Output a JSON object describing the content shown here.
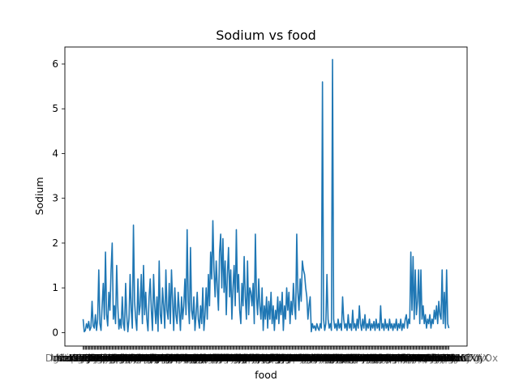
{
  "chart_data": {
    "type": "line",
    "title": "Sodium vs food",
    "xlabel": "food",
    "ylabel": "Sodium",
    "ylim": [
      -0.3,
      6.38
    ],
    "yticks": [
      0,
      1,
      2,
      3,
      4,
      5,
      6
    ],
    "line_color": "#1f77b4",
    "grid": false,
    "legend": "none",
    "series": [
      {
        "values": [
          0.3,
          0.02,
          0.05,
          0.2,
          0.1,
          0.25,
          0.05,
          0.12,
          0.7,
          0.15,
          0.1,
          0.4,
          0.05,
          0.3,
          1.4,
          0.2,
          0.05,
          0.6,
          1.1,
          0.3,
          1.8,
          0.4,
          0.15,
          0.9,
          0.5,
          1.4,
          2.0,
          0.3,
          0.6,
          0.2,
          1.5,
          0.6,
          0.08,
          0.3,
          0.1,
          0.8,
          0.2,
          0.05,
          1.1,
          0.4,
          0.02,
          0.3,
          1.3,
          0.5,
          0.1,
          2.4,
          0.7,
          0.3,
          0.05,
          1.2,
          0.4,
          0.6,
          1.3,
          0.2,
          1.5,
          0.4,
          0.9,
          0.3,
          0.04,
          0.8,
          1.2,
          0.5,
          0.05,
          1.3,
          0.6,
          0.2,
          0.8,
          0.03,
          1.6,
          0.4,
          0.2,
          1.0,
          0.6,
          0.1,
          1.4,
          0.5,
          0.3,
          1.1,
          0.2,
          1.4,
          0.7,
          0.05,
          1.0,
          0.4,
          0.2,
          0.9,
          0.5,
          0.05,
          0.8,
          0.3,
          0.6,
          1.2,
          0.4,
          2.3,
          0.7,
          0.2,
          1.9,
          0.5,
          0.3,
          0.8,
          0.05,
          0.4,
          0.9,
          0.3,
          0.1,
          0.6,
          0.2,
          1.0,
          0.05,
          0.4,
          1.0,
          0.3,
          1.3,
          0.6,
          1.8,
          1.2,
          2.5,
          1.4,
          0.8,
          1.6,
          1.0,
          0.5,
          1.8,
          2.2,
          1.0,
          2.1,
          0.9,
          1.6,
          0.4,
          1.3,
          1.9,
          0.8,
          1.4,
          0.3,
          1.0,
          1.5,
          0.6,
          2.3,
          0.9,
          1.3,
          0.5,
          0.2,
          1.1,
          0.6,
          1.7,
          0.8,
          0.3,
          1.6,
          0.4,
          1.0,
          0.9,
          0.6,
          1.1,
          0.2,
          2.2,
          0.8,
          0.4,
          1.2,
          0.6,
          0.3,
          1.0,
          0.05,
          0.6,
          0.3,
          0.8,
          0.1,
          0.7,
          0.3,
          0.9,
          0.2,
          0.6,
          0.05,
          0.5,
          0.3,
          0.8,
          0.2,
          0.7,
          0.4,
          0.9,
          0.05,
          0.6,
          0.3,
          1.0,
          0.5,
          0.9,
          0.2,
          0.7,
          0.4,
          1.1,
          0.6,
          0.3,
          2.2,
          0.9,
          0.5,
          1.2,
          0.7,
          1.6,
          1.4,
          1.3,
          1.0,
          0.8,
          0.3,
          0.6,
          0.8,
          0.02,
          0.2,
          0.1,
          0.15,
          0.05,
          0.2,
          0.1,
          0.05,
          0.2,
          0.1,
          5.6,
          0.3,
          0.05,
          0.2,
          1.3,
          0.3,
          0.1,
          0.2,
          0.05,
          6.1,
          0.3,
          0.1,
          0.2,
          0.05,
          0.3,
          0.1,
          0.2,
          0.05,
          0.8,
          0.3,
          0.1,
          0.2,
          0.05,
          0.4,
          0.1,
          0.2,
          0.05,
          0.5,
          0.1,
          0.2,
          0.05,
          0.3,
          0.1,
          0.6,
          0.2,
          0.05,
          0.3,
          0.1,
          0.4,
          0.05,
          0.2,
          0.1,
          0.3,
          0.05,
          0.2,
          0.1,
          0.25,
          0.05,
          0.3,
          0.1,
          0.2,
          0.05,
          0.6,
          0.1,
          0.2,
          0.05,
          0.3,
          0.1,
          0.2,
          0.05,
          0.3,
          0.1,
          0.2,
          0.05,
          0.2,
          0.1,
          0.3,
          0.05,
          0.2,
          0.1,
          0.3,
          0.05,
          0.2,
          0.1,
          0.3,
          0.4,
          0.1,
          0.3,
          0.2,
          1.8,
          0.5,
          1.7,
          0.3,
          1.4,
          0.4,
          0.7,
          1.4,
          0.2,
          1.4,
          0.3,
          0.6,
          0.2,
          0.4,
          0.1,
          0.3,
          0.2,
          0.4,
          0.1,
          0.3,
          0.2,
          0.5,
          0.3,
          0.6,
          0.2,
          0.7,
          0.4,
          0.3,
          1.4,
          0.2,
          0.9,
          0.1,
          1.4,
          0.2,
          0.1
        ],
        "color": "#1f77b4"
      }
    ]
  }
}
